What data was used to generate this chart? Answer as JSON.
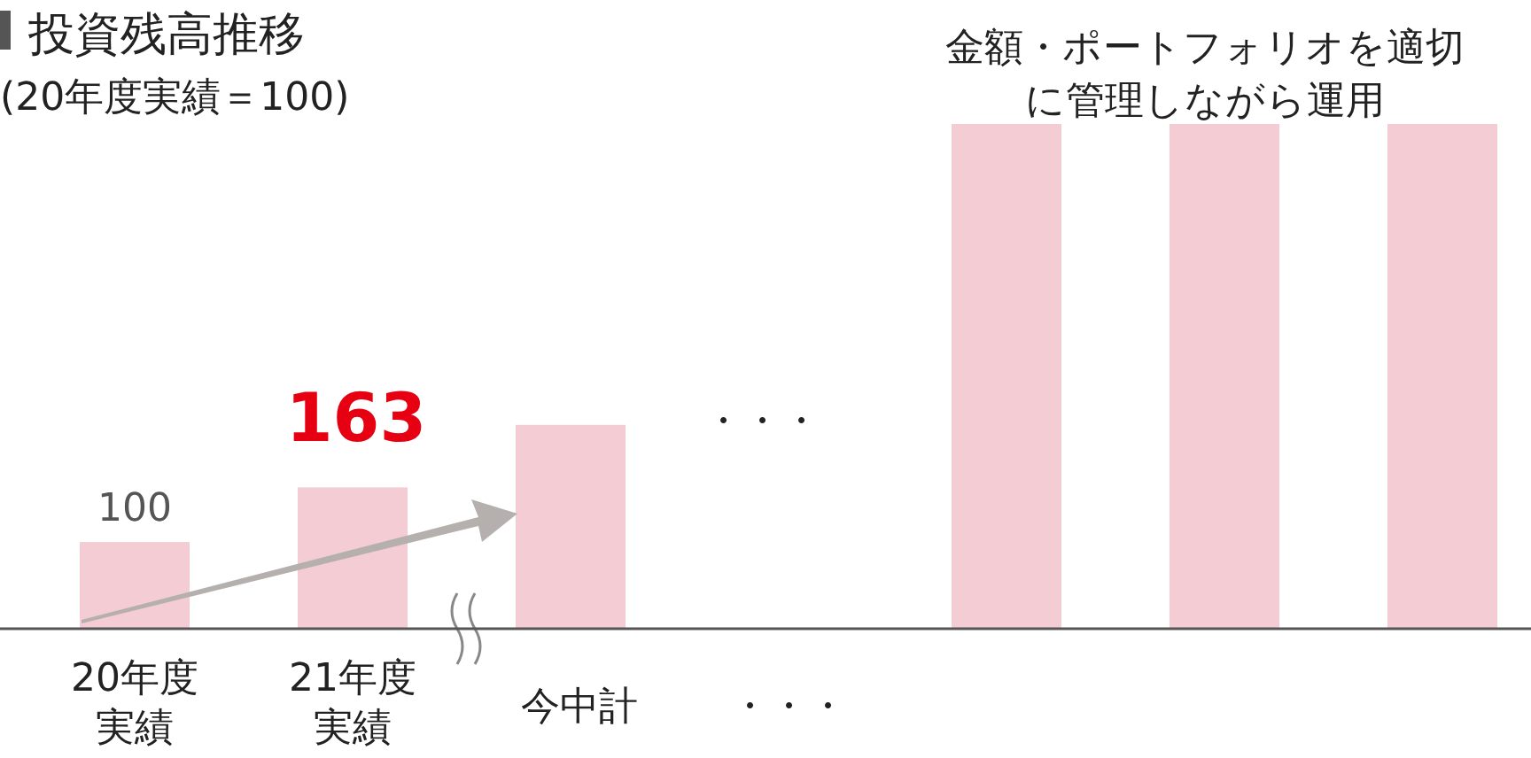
{
  "chart_data": {
    "type": "bar",
    "title": "投資残高推移",
    "subtitle": "(20年度実績＝100)",
    "categories": [
      "20年度実績",
      "21年度実績",
      "今中計",
      "・・・",
      null,
      null,
      null
    ],
    "values": [
      100,
      163,
      235,
      null,
      582,
      582,
      582
    ],
    "color": "#f4ccd3",
    "value_labels": [
      "100",
      "163",
      null,
      null,
      null,
      null,
      null
    ],
    "annotations": [
      "金額・ポートフォリオを適切に管理しながら運用",
      "・・・"
    ]
  }
}
